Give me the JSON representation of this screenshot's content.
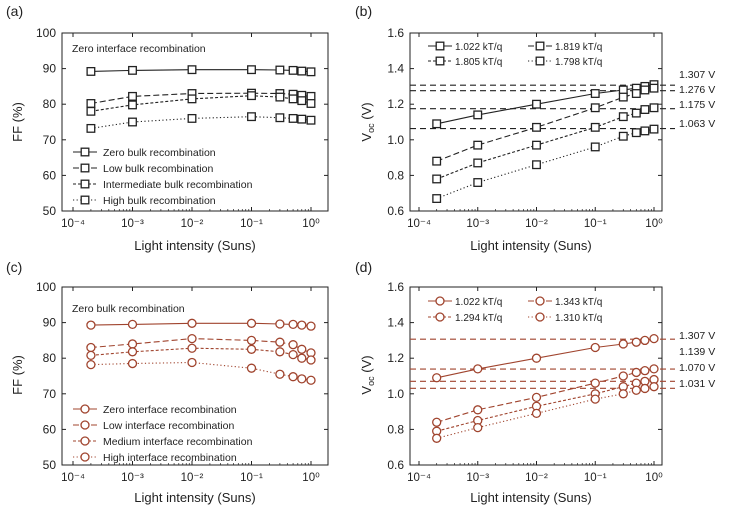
{
  "panels": [
    {
      "label": "(a)",
      "title": "Zero interface recombination",
      "ylabel": "FF (%)",
      "xlabel": "Light intensity (Suns)",
      "yticks": [
        "50",
        "60",
        "70",
        "80",
        "90",
        "100"
      ],
      "xticks": [
        "10⁻⁴",
        "10⁻³",
        "10⁻²",
        "10⁻¹",
        "10⁰"
      ],
      "legend": [
        "Zero bulk recombination",
        "Low bulk recombination",
        "Intermediate bulk recombination",
        "High bulk recombination"
      ]
    },
    {
      "label": "(b)",
      "ylabel": "Voc (V)",
      "xlabel": "Light intensity (Suns)",
      "yticks": [
        "0.6",
        "0.8",
        "1.0",
        "1.2",
        "1.4",
        "1.6"
      ],
      "xticks": [
        "10⁻⁴",
        "10⁻³",
        "10⁻²",
        "10⁻¹",
        "10⁰"
      ],
      "legend": [
        "1.022 kT/q",
        "1.819 kT/q",
        "1.805 kT/q",
        "1.798 kT/q"
      ],
      "ref_labels": [
        "1.307 V",
        "1.276 V",
        "1.175 V",
        "1.063 V"
      ]
    },
    {
      "label": "(c)",
      "title": "Zero bulk recombination",
      "ylabel": "FF (%)",
      "xlabel": "Light intensity (Suns)",
      "yticks": [
        "50",
        "60",
        "70",
        "80",
        "90",
        "100"
      ],
      "xticks": [
        "10⁻⁴",
        "10⁻³",
        "10⁻²",
        "10⁻¹",
        "10⁰"
      ],
      "legend": [
        "Zero interface recombination",
        "Low interface recombination",
        "Medium interface recombination",
        "High interface recombination"
      ]
    },
    {
      "label": "(d)",
      "ylabel": "Voc (V)",
      "xlabel": "Light intensity (Suns)",
      "yticks": [
        "0.6",
        "0.8",
        "1.0",
        "1.2",
        "1.4",
        "1.6"
      ],
      "xticks": [
        "10⁻⁴",
        "10⁻³",
        "10⁻²",
        "10⁻¹",
        "10⁰"
      ],
      "legend": [
        "1.022 kT/q",
        "1.343 kT/q",
        "1.294 kT/q",
        "1.310 kT/q"
      ],
      "ref_labels": [
        "1.307 V",
        "1.139 V",
        "1.070 V",
        "1.031 V"
      ]
    }
  ],
  "colors": {
    "black": "#222222",
    "red": "#a0442e"
  },
  "chart_data": [
    {
      "type": "line",
      "panel": "a",
      "xscale": "log",
      "xlim": [
        0.0001,
        1
      ],
      "ylim": [
        50,
        100
      ],
      "x": [
        0.0002,
        0.001,
        0.01,
        0.1,
        0.3,
        0.5,
        0.7,
        1.0
      ],
      "marker": "square",
      "color": "#222222",
      "series": [
        {
          "name": "Zero bulk recombination",
          "dash": "solid",
          "values": [
            89.2,
            89.5,
            89.7,
            89.7,
            89.6,
            89.5,
            89.3,
            89.1
          ]
        },
        {
          "name": "Low bulk recombination",
          "dash": "dashed",
          "values": [
            80.2,
            82.2,
            83.0,
            83.1,
            83.0,
            82.8,
            82.5,
            82.2
          ]
        },
        {
          "name": "Intermediate bulk recombination",
          "dash": "shortdash",
          "values": [
            78.0,
            79.8,
            81.5,
            82.4,
            82.0,
            81.5,
            81.0,
            80.2
          ]
        },
        {
          "name": "High bulk recombination",
          "dash": "dotted",
          "values": [
            73.2,
            75.0,
            76.0,
            76.5,
            76.2,
            76.0,
            75.8,
            75.5
          ]
        }
      ]
    },
    {
      "type": "line",
      "panel": "b",
      "xscale": "log",
      "xlim": [
        0.0001,
        1
      ],
      "ylim": [
        0.6,
        1.6
      ],
      "x": [
        0.0002,
        0.001,
        0.01,
        0.1,
        0.3,
        0.5,
        0.7,
        1.0
      ],
      "marker": "square",
      "color": "#222222",
      "series": [
        {
          "name": "1.022 kT/q",
          "dash": "solid",
          "values": [
            1.09,
            1.14,
            1.2,
            1.26,
            1.28,
            1.29,
            1.3,
            1.31
          ]
        },
        {
          "name": "1.819 kT/q",
          "dash": "dashed",
          "values": [
            0.88,
            0.97,
            1.07,
            1.18,
            1.24,
            1.26,
            1.28,
            1.29
          ]
        },
        {
          "name": "1.805 kT/q",
          "dash": "shortdash",
          "values": [
            0.78,
            0.87,
            0.97,
            1.07,
            1.13,
            1.15,
            1.17,
            1.18
          ]
        },
        {
          "name": "1.798 kT/q",
          "dash": "dotted",
          "values": [
            0.67,
            0.76,
            0.86,
            0.96,
            1.02,
            1.04,
            1.05,
            1.06
          ]
        }
      ],
      "reference_lines": [
        1.307,
        1.276,
        1.175,
        1.063
      ]
    },
    {
      "type": "line",
      "panel": "c",
      "xscale": "log",
      "xlim": [
        0.0001,
        1
      ],
      "ylim": [
        50,
        100
      ],
      "x": [
        0.0002,
        0.001,
        0.01,
        0.1,
        0.3,
        0.5,
        0.7,
        1.0
      ],
      "marker": "circle",
      "color": "#a0442e",
      "series": [
        {
          "name": "Zero interface recombination",
          "dash": "solid",
          "values": [
            89.3,
            89.5,
            89.8,
            89.8,
            89.6,
            89.5,
            89.3,
            89.0
          ]
        },
        {
          "name": "Low interface recombination",
          "dash": "dashed",
          "values": [
            83.0,
            84.0,
            85.5,
            85.0,
            84.5,
            83.8,
            82.5,
            81.5
          ]
        },
        {
          "name": "Medium interface recombination",
          "dash": "shortdash",
          "values": [
            80.8,
            81.8,
            82.8,
            82.5,
            81.8,
            81.0,
            80.0,
            79.5
          ]
        },
        {
          "name": "High interface recombination",
          "dash": "dotted",
          "values": [
            78.2,
            78.5,
            78.8,
            77.2,
            75.5,
            74.8,
            74.2,
            73.8
          ]
        }
      ]
    },
    {
      "type": "line",
      "panel": "d",
      "xscale": "log",
      "xlim": [
        0.0001,
        1
      ],
      "ylim": [
        0.6,
        1.6
      ],
      "x": [
        0.0002,
        0.001,
        0.01,
        0.1,
        0.3,
        0.5,
        0.7,
        1.0
      ],
      "marker": "circle",
      "color": "#a0442e",
      "series": [
        {
          "name": "1.022 kT/q",
          "dash": "solid",
          "values": [
            1.09,
            1.14,
            1.2,
            1.26,
            1.28,
            1.29,
            1.3,
            1.31
          ]
        },
        {
          "name": "1.343 kT/q",
          "dash": "dashed",
          "values": [
            0.84,
            0.91,
            0.98,
            1.06,
            1.1,
            1.12,
            1.13,
            1.14
          ]
        },
        {
          "name": "1.294 kT/q",
          "dash": "shortdash",
          "values": [
            0.79,
            0.85,
            0.93,
            1.0,
            1.04,
            1.06,
            1.07,
            1.08
          ]
        },
        {
          "name": "1.310 kT/q",
          "dash": "dotted",
          "values": [
            0.75,
            0.81,
            0.89,
            0.97,
            1.0,
            1.02,
            1.03,
            1.04
          ]
        }
      ],
      "reference_lines": [
        1.307,
        1.139,
        1.07,
        1.031
      ]
    }
  ]
}
